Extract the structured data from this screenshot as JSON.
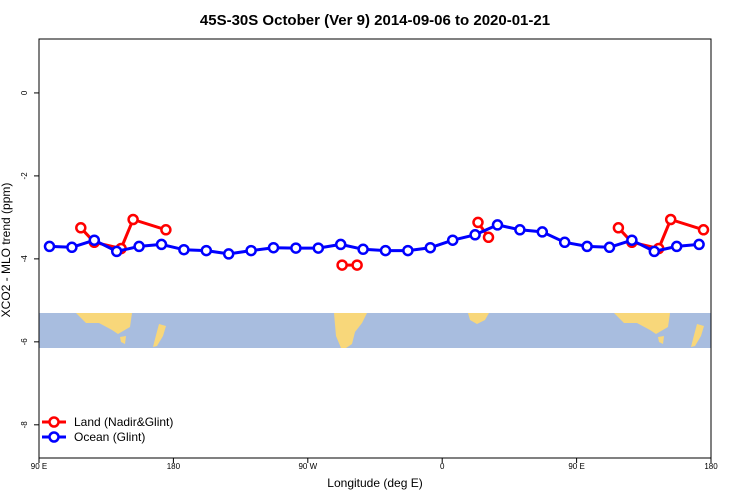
{
  "chart_data": {
    "type": "line",
    "title": "45S-30S October (Ver 9)   2014-09-06 to 2020-01-21",
    "xlabel": "Longitude (deg E)",
    "ylabel": "XCO2 - MLO trend (ppm)",
    "xlim": [
      90,
      540
    ],
    "ylim": [
      -8.8,
      1.3
    ],
    "x_ticks": [
      {
        "value": 90,
        "label": "90 E"
      },
      {
        "value": 180,
        "label": "180"
      },
      {
        "value": 270,
        "label": "90 W"
      },
      {
        "value": 360,
        "label": "0"
      },
      {
        "value": 450,
        "label": "90 E"
      },
      {
        "value": 540,
        "label": "180"
      }
    ],
    "y_ticks": [
      {
        "value": 0,
        "label": "0"
      },
      {
        "value": -2,
        "label": "-2"
      },
      {
        "value": -4,
        "label": "-4"
      },
      {
        "value": -6,
        "label": "-6"
      },
      {
        "value": -8,
        "label": "-8"
      }
    ],
    "grid": false,
    "legend_position": "bottom-left",
    "map_strip": {
      "y_top": -5.45,
      "y_bottom": -6.2,
      "ocean_color": "#a8bddf",
      "land_color": "#f8d77a"
    },
    "series": [
      {
        "name": "Land (Nadir&Glint)",
        "color": "#ff0000",
        "segments": [
          [
            [
              118,
              -3.25
            ],
            [
              127,
              -3.6
            ],
            [
              145,
              -3.75
            ],
            [
              153,
              -3.05
            ],
            [
              175,
              -3.3
            ]
          ],
          [
            [
              293,
              -4.15
            ],
            [
              303,
              -4.15
            ]
          ],
          [
            [
              384,
              -3.12
            ],
            [
              391,
              -3.48
            ]
          ],
          [
            [
              478,
              -3.25
            ],
            [
              487,
              -3.6
            ],
            [
              505,
              -3.75
            ],
            [
              513,
              -3.05
            ],
            [
              535,
              -3.3
            ]
          ]
        ]
      },
      {
        "name": "Ocean (Glint)",
        "color": "#0000ff",
        "segments": [
          [
            [
              97,
              -3.7
            ],
            [
              112,
              -3.72
            ],
            [
              127,
              -3.55
            ],
            [
              142,
              -3.82
            ],
            [
              157,
              -3.7
            ],
            [
              172,
              -3.65
            ],
            [
              187,
              -3.78
            ],
            [
              202,
              -3.8
            ],
            [
              217,
              -3.88
            ],
            [
              232,
              -3.8
            ],
            [
              247,
              -3.73
            ],
            [
              262,
              -3.74
            ],
            [
              277,
              -3.74
            ],
            [
              292,
              -3.65
            ],
            [
              307,
              -3.77
            ],
            [
              322,
              -3.8
            ],
            [
              337,
              -3.8
            ],
            [
              352,
              -3.73
            ],
            [
              367,
              -3.55
            ],
            [
              382,
              -3.42
            ],
            [
              397,
              -3.18
            ],
            [
              412,
              -3.3
            ],
            [
              427,
              -3.35
            ],
            [
              442,
              -3.6
            ],
            [
              457,
              -3.7
            ],
            [
              472,
              -3.72
            ],
            [
              487,
              -3.55
            ],
            [
              502,
              -3.82
            ],
            [
              517,
              -3.7
            ],
            [
              532,
              -3.65
            ]
          ]
        ]
      }
    ]
  }
}
